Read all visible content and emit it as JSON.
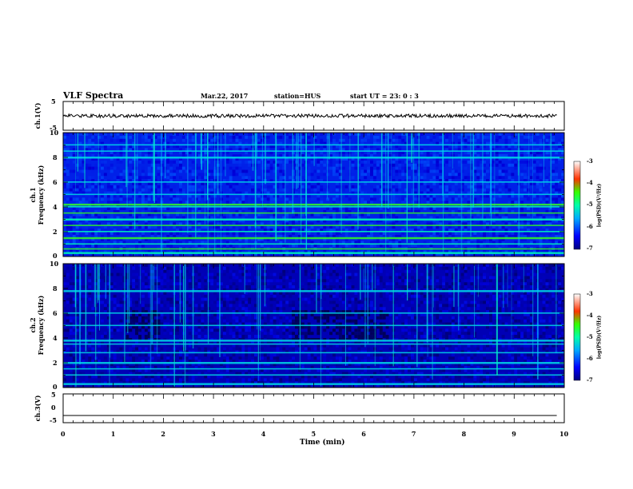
{
  "header": {
    "title": "VLF Spectra",
    "date": "Mar.22, 2017",
    "station": "station=HUS",
    "start": "start  UT =   23: 0  : 3"
  },
  "colorbar": {
    "label": "log(PSD)(V²/Hz)",
    "ticks": [
      "-3",
      "-4",
      "-5",
      "-6",
      "-7"
    ]
  },
  "chart_data": [
    {
      "type": "line",
      "ylabel": "ch.1(V)",
      "ylim": [
        -5,
        5
      ],
      "y_ticks": [
        "5",
        "-5"
      ],
      "xlim": [
        0,
        10
      ],
      "description_values": {
        "mean": 0,
        "noise_amplitude": 0.6
      }
    },
    {
      "type": "heatmap",
      "ylabel": "ch.1\nFrequency (kHz)",
      "ylim": [
        0,
        10
      ],
      "y_ticks": [
        "0",
        "2",
        "4",
        "6",
        "8",
        "10"
      ],
      "xlim": [
        0,
        10
      ],
      "clim": [
        -7,
        -3
      ],
      "bands_khz": [
        0.3,
        0.6,
        1.0,
        1.5,
        2.0,
        2.5,
        3.0,
        3.5,
        4.0,
        4.2,
        5.0,
        6.0,
        8.0,
        8.5,
        9.0
      ]
    },
    {
      "type": "heatmap",
      "ylabel": "ch.2\nFrequency (kHz)",
      "ylim": [
        0,
        10
      ],
      "y_ticks": [
        "0",
        "2",
        "4",
        "6",
        "8",
        "10"
      ],
      "xlim": [
        0,
        10
      ],
      "clim": [
        -7,
        -3
      ],
      "bands_khz": [
        0.3,
        1.0,
        1.5,
        2.0,
        2.8,
        3.5,
        3.8,
        5.0,
        6.0,
        7.8
      ]
    },
    {
      "type": "line",
      "ylabel": "ch.3(V)",
      "ylim": [
        -5,
        5
      ],
      "y_ticks": [
        "5",
        "0",
        "-5"
      ],
      "xlim": [
        0,
        10
      ],
      "description_values": {
        "constant": -2.5
      }
    }
  ],
  "xaxis": {
    "label": "Time  (min)",
    "ticks": [
      "0",
      "1",
      "2",
      "3",
      "4",
      "5",
      "6",
      "7",
      "8",
      "9",
      "10"
    ]
  }
}
